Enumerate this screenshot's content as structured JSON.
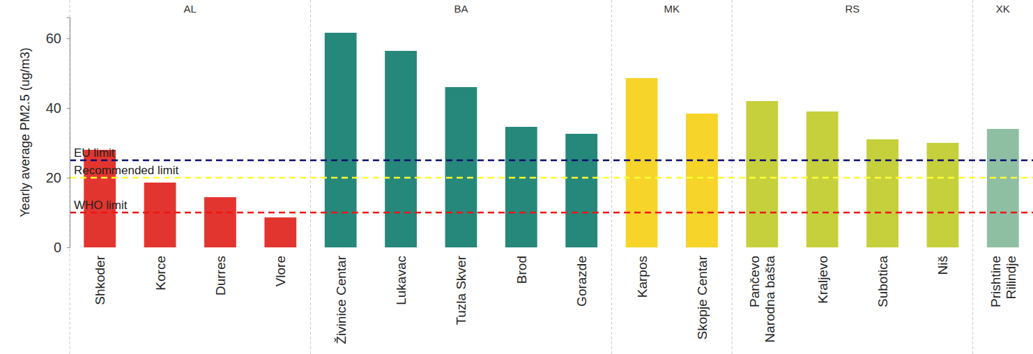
{
  "chart_data": {
    "type": "bar",
    "y_label": "Yearly average PM2.5 (ug/m3)",
    "ylim": [
      0,
      66
    ],
    "yticks": [
      0,
      20,
      40,
      60
    ],
    "series": [
      {
        "name": "AL",
        "color": "#e3352f",
        "categories": [
          "Shkoder",
          "Korce",
          "Durres",
          "Vlore"
        ],
        "values": [
          28,
          18.6,
          14.4,
          8.6
        ]
      },
      {
        "name": "BA",
        "color": "#26887a",
        "categories": [
          "Živinice Centar",
          "Lukavac",
          "Tuzla Skver",
          "Brod",
          "Gorazde"
        ],
        "values": [
          61.6,
          56.4,
          46,
          34.6,
          32.6
        ]
      },
      {
        "name": "MK",
        "color": "#f6d42a",
        "categories": [
          "Karpos",
          "Skopje Centar"
        ],
        "values": [
          48.6,
          38.4
        ]
      },
      {
        "name": "RS",
        "color": "#c5d03c",
        "categories": [
          "Pančevo\nNarodna bašta",
          "Kraljevo",
          "Subotica",
          "Niš"
        ],
        "values": [
          42,
          39,
          31,
          30
        ]
      },
      {
        "name": "XK",
        "color": "#8fbfa3",
        "categories": [
          "Prishtine\nRilindje"
        ],
        "values": [
          34
        ]
      }
    ],
    "reference_lines": [
      {
        "label": "EU limit",
        "value": 25,
        "color": "#0d0d70",
        "line_style": "dashed"
      },
      {
        "label": "Recommended limit",
        "value": 20,
        "color": "#ffff33",
        "line_style": "dashed"
      },
      {
        "label": "WHO limit",
        "value": 10,
        "color": "#ee1515",
        "line_style": "dashed"
      }
    ]
  }
}
